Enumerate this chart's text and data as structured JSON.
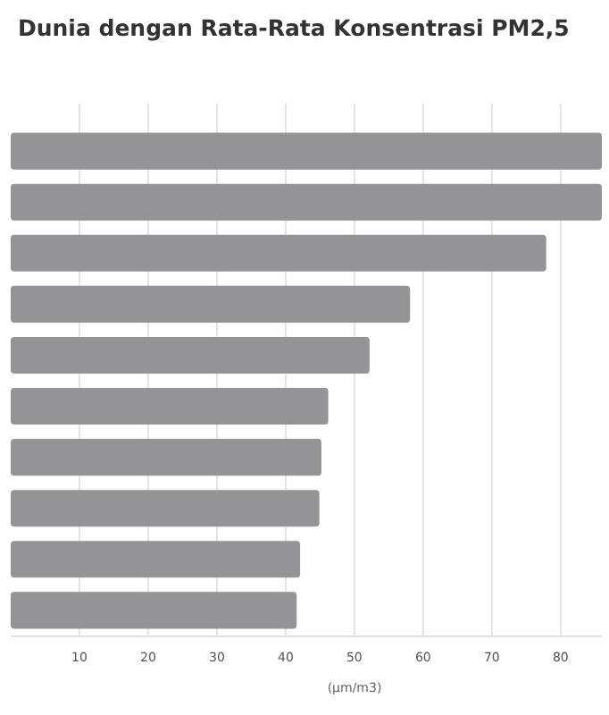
{
  "chart_data": {
    "type": "bar",
    "orientation": "horizontal",
    "title": "Dunia dengan Rata-Rata Konsentrasi PM2,5",
    "xlabel": "(µm/m3)",
    "categories": [
      null,
      null,
      null,
      null,
      null,
      null,
      null,
      null,
      null,
      null
    ],
    "values": [
      86,
      86,
      77.9,
      58.1,
      52.2,
      46.2,
      45.2,
      44.9,
      42.1,
      41.6
    ],
    "color": "#949497",
    "xlim": [
      0,
      86
    ],
    "xticks": [
      10,
      20,
      30,
      40,
      50,
      60,
      70,
      80
    ],
    "grid": "x"
  }
}
